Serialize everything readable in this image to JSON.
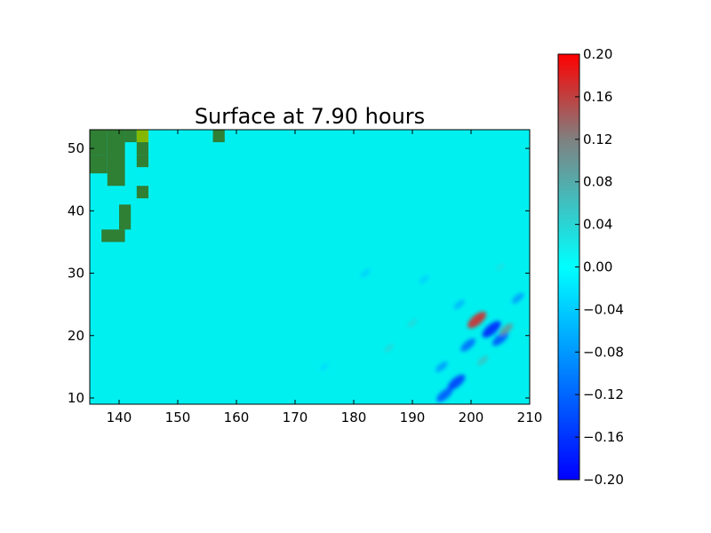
{
  "chart_data": {
    "type": "heatmap",
    "title": "Surface at 7.90 hours",
    "xlabel": "",
    "ylabel": "",
    "xlim": [
      135,
      210
    ],
    "ylim": [
      9,
      53
    ],
    "x_ticks": [
      140,
      150,
      160,
      170,
      180,
      190,
      200,
      210
    ],
    "y_ticks": [
      10,
      20,
      30,
      40,
      50
    ],
    "grid": false,
    "colorbar": {
      "range": [
        -0.2,
        0.2
      ],
      "ticks": [
        "0.20",
        "0.16",
        "0.12",
        "0.08",
        "0.04",
        "0.00",
        "−0.04",
        "−0.08",
        "−0.12",
        "−0.16",
        "−0.20"
      ],
      "tick_values": [
        0.2,
        0.16,
        0.12,
        0.08,
        0.04,
        0.0,
        -0.04,
        -0.08,
        -0.12,
        -0.16,
        -0.2
      ],
      "colors": {
        "min": "#0000ff",
        "mid": "#00ffff",
        "upper": "#808080",
        "max": "#ff0000"
      }
    },
    "colors": {
      "ocean": "#00f0f0",
      "land": "#2f7f35",
      "land_light": "#84b800"
    },
    "land_cells": [
      [
        135,
        53,
        138,
        49
      ],
      [
        138,
        53,
        141,
        44
      ],
      [
        135,
        49,
        138,
        46
      ],
      [
        141,
        53,
        143,
        51
      ],
      [
        143,
        53,
        145,
        51
      ],
      [
        143,
        51,
        145,
        49
      ],
      [
        143,
        49,
        145,
        47
      ],
      [
        143,
        44,
        145,
        42
      ],
      [
        140,
        41,
        142,
        37
      ],
      [
        137,
        37,
        141,
        35
      ],
      [
        156,
        53,
        158,
        51
      ]
    ],
    "features": [
      {
        "x": 201,
        "y": 22.5,
        "value": 0.18
      },
      {
        "x": 203.5,
        "y": 21,
        "value": -0.18
      },
      {
        "x": 205,
        "y": 19.5,
        "value": -0.14
      },
      {
        "x": 206,
        "y": 21,
        "value": 0.1
      },
      {
        "x": 199.5,
        "y": 18.5,
        "value": -0.12
      },
      {
        "x": 197.5,
        "y": 12.5,
        "value": -0.16
      },
      {
        "x": 195.5,
        "y": 10.5,
        "value": -0.14
      },
      {
        "x": 202,
        "y": 16,
        "value": 0.06
      },
      {
        "x": 195,
        "y": 15,
        "value": -0.08
      },
      {
        "x": 190,
        "y": 22,
        "value": 0.04
      },
      {
        "x": 186,
        "y": 18,
        "value": 0.04
      },
      {
        "x": 208,
        "y": 26,
        "value": -0.08
      },
      {
        "x": 198,
        "y": 25,
        "value": -0.06
      },
      {
        "x": 192,
        "y": 29,
        "value": -0.04
      },
      {
        "x": 182,
        "y": 30,
        "value": -0.04
      },
      {
        "x": 175,
        "y": 15,
        "value": -0.03
      },
      {
        "x": 205,
        "y": 31,
        "value": 0.03
      }
    ]
  }
}
